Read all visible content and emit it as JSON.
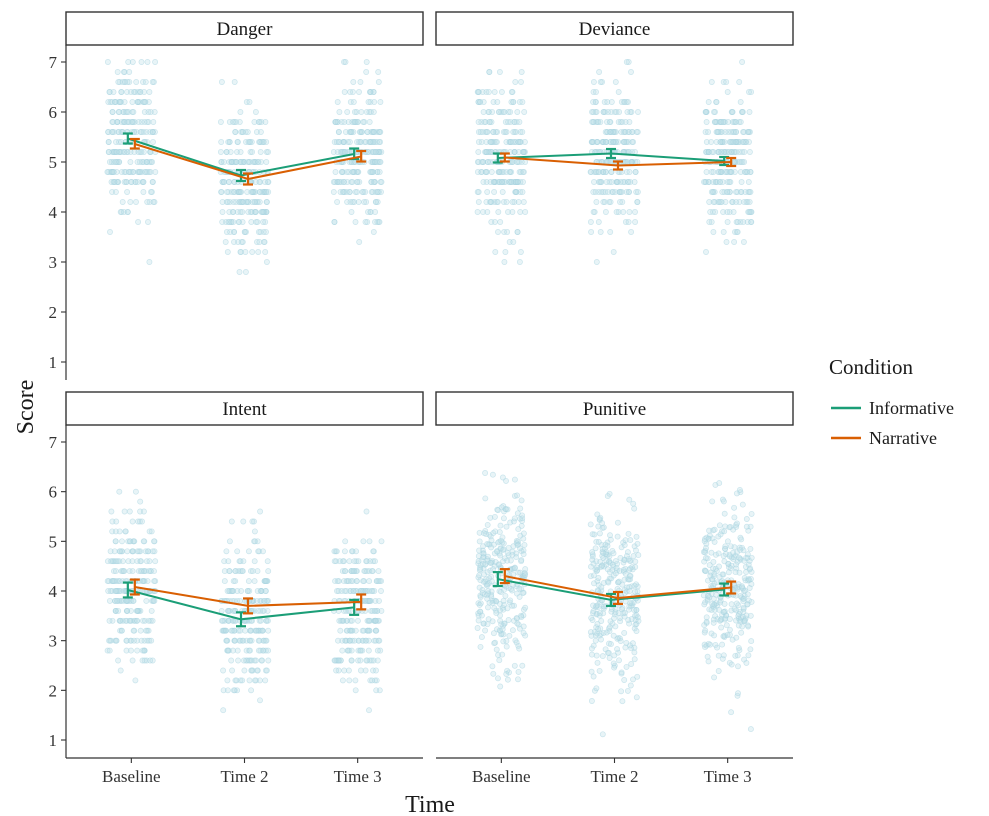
{
  "chart_data": {
    "type": "line",
    "facets": [
      "Danger",
      "Deviance",
      "Intent",
      "Punitive"
    ],
    "categories": [
      "Baseline",
      "Time 2",
      "Time 3"
    ],
    "xlabel": "Time",
    "ylabel": "Score",
    "ylim": [
      1,
      7
    ],
    "yticks": [
      1,
      2,
      3,
      4,
      5,
      6,
      7
    ],
    "legend": {
      "title": "Condition",
      "placement": "right",
      "entries": [
        "Informative",
        "Narrative"
      ]
    },
    "colors": {
      "Informative": "#1b9e77",
      "Narrative": "#d95f02",
      "raw_points": "#a8d3e0"
    },
    "grid": false,
    "panels": [
      {
        "facet": "Danger",
        "series": [
          {
            "name": "Informative",
            "values": [
              5.47,
              4.73,
              5.16
            ],
            "ci": [
              [
                5.37,
                5.57
              ],
              [
                4.62,
                4.84
              ],
              [
                5.06,
                5.27
              ]
            ]
          },
          {
            "name": "Narrative",
            "values": [
              5.36,
              4.66,
              5.11
            ],
            "ci": [
              [
                5.27,
                5.46
              ],
              [
                4.55,
                4.77
              ],
              [
                5.01,
                5.22
              ]
            ]
          }
        ]
      },
      {
        "facet": "Deviance",
        "series": [
          {
            "name": "Informative",
            "values": [
              5.08,
              5.17,
              5.02
            ],
            "ci": [
              [
                4.99,
                5.17
              ],
              [
                5.08,
                5.26
              ],
              [
                4.94,
                5.1
              ]
            ]
          },
          {
            "name": "Narrative",
            "values": [
              5.09,
              4.93,
              5.0
            ],
            "ci": [
              [
                5.01,
                5.17
              ],
              [
                4.85,
                5.01
              ],
              [
                4.92,
                5.08
              ]
            ]
          }
        ]
      },
      {
        "facet": "Intent",
        "series": [
          {
            "name": "Informative",
            "values": [
              4.02,
              3.43,
              3.67
            ],
            "ci": [
              [
                3.87,
                4.17
              ],
              [
                3.29,
                3.57
              ],
              [
                3.52,
                3.82
              ]
            ]
          },
          {
            "name": "Narrative",
            "values": [
              4.08,
              3.7,
              3.78
            ],
            "ci": [
              [
                3.93,
                4.23
              ],
              [
                3.55,
                3.85
              ],
              [
                3.63,
                3.93
              ]
            ]
          }
        ]
      },
      {
        "facet": "Punitive",
        "series": [
          {
            "name": "Informative",
            "values": [
              4.24,
              3.82,
              4.03
            ],
            "ci": [
              [
                4.1,
                4.38
              ],
              [
                3.7,
                3.94
              ],
              [
                3.91,
                4.15
              ]
            ]
          },
          {
            "name": "Narrative",
            "values": [
              4.3,
              3.86,
              4.07
            ],
            "ci": [
              [
                4.16,
                4.44
              ],
              [
                3.74,
                3.98
              ],
              [
                3.95,
                4.19
              ]
            ]
          }
        ]
      }
    ]
  }
}
